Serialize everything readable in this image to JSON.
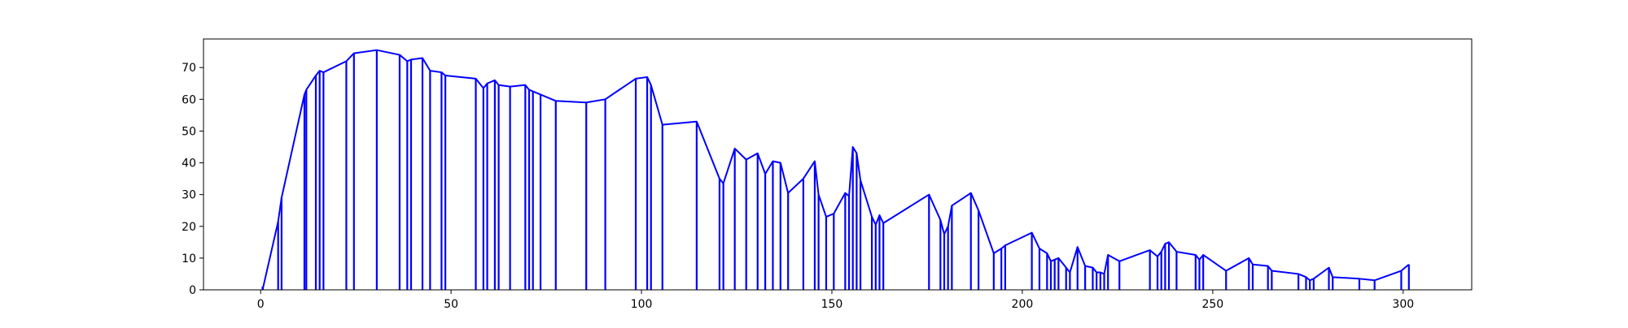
{
  "chart_data": {
    "type": "line",
    "title": "",
    "xlabel": "",
    "ylabel": "",
    "xlim": [
      -15,
      318
    ],
    "ylim": [
      0,
      79
    ],
    "xticks": [
      0,
      50,
      100,
      150,
      200,
      250,
      300
    ],
    "yticks": [
      0,
      10,
      20,
      30,
      40,
      50,
      60,
      70
    ],
    "grid": false,
    "legend": "none",
    "line_color": "#0000ff",
    "series": [
      {
        "x": [
          0.5,
          0.6,
          4.6,
          5.5,
          11.5,
          12,
          14.5,
          15.5,
          16.5,
          22.5,
          24.5,
          30.5,
          36.5,
          38.5,
          39.5,
          42.5,
          44.5,
          47.5,
          48.5,
          56.5,
          58.5,
          59.5,
          61.5,
          62.5,
          65.5,
          69.5,
          70.5,
          71.5,
          73.5,
          77.5,
          85.5,
          90.5,
          98.5,
          101.5,
          102.5,
          105.5,
          114.5,
          120.5,
          121.5,
          124.5,
          127.5,
          130.5,
          132.5,
          134.5,
          136.5,
          138.5,
          142.5,
          145.5,
          146.5,
          148.5,
          150.5,
          153.5,
          154.5,
          155.5,
          156.5,
          157.5,
          160.5,
          161.5,
          162.5,
          163.5,
          175.5,
          178.5,
          179.5,
          180.5,
          181.5,
          186.5,
          188.5,
          192.5,
          194.5,
          195.5,
          202.5,
          204.5,
          206.5,
          207.5,
          208.5,
          209.5,
          211.5,
          212.5,
          214.5,
          216.5,
          218.5,
          219.5,
          220.5,
          221.5,
          222.5,
          225.5,
          233.5,
          235.5,
          236.5,
          237.5,
          238.5,
          240.5,
          245.5,
          246.5,
          247.5,
          253.5,
          259.5,
          260.5,
          264.5,
          265.5,
          272.5,
          274.5,
          275.5,
          276.5,
          280.5,
          281.5,
          288.5,
          292.5,
          299.5,
          301.5
        ],
        "y": [
          1,
          0.5,
          21.5,
          29,
          61.5,
          63,
          67.5,
          69,
          68.5,
          72,
          74.5,
          75.5,
          74,
          72,
          72.5,
          73,
          69,
          68.5,
          67.5,
          66.5,
          63.5,
          65,
          66,
          64.5,
          64,
          64.5,
          63,
          62.5,
          61.5,
          59.5,
          59,
          60,
          66.5,
          67,
          64.5,
          52,
          53,
          35,
          33.5,
          44.5,
          41,
          43,
          36.5,
          40.5,
          40,
          30.5,
          35,
          40.5,
          30,
          23,
          24,
          30.5,
          29.5,
          45,
          43,
          34.5,
          23,
          20.5,
          23.5,
          21,
          30,
          22,
          17.5,
          20,
          26.5,
          30.5,
          25,
          11.5,
          13,
          14,
          18,
          13,
          11.5,
          9,
          9.5,
          10,
          7,
          5.5,
          13.5,
          7.5,
          7,
          5.5,
          5.5,
          5,
          11,
          9,
          12.5,
          10.5,
          12,
          14.5,
          15,
          12,
          11,
          9.5,
          11,
          6,
          10,
          8,
          7.5,
          6,
          5,
          4,
          3,
          3.5,
          7,
          4,
          3.5,
          3,
          6,
          8
        ]
      }
    ]
  }
}
